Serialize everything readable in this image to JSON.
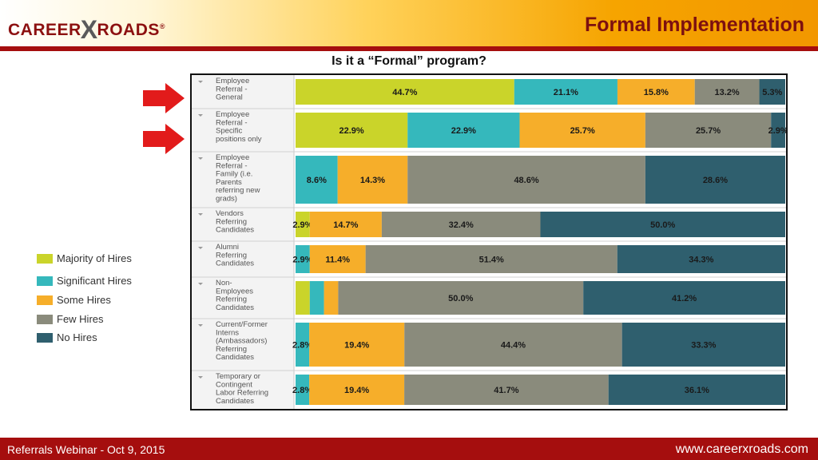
{
  "header": {
    "logo_left": "CAREER",
    "logo_x": "X",
    "logo_right": "ROADS",
    "logo_mark": "®",
    "title": "Formal Implementation"
  },
  "footer": {
    "left": "Referrals Webinar - Oct 9, 2015",
    "right": "www.careerxroads.com"
  },
  "colors": {
    "majority": "#cad42a",
    "significant": "#35b8bc",
    "some": "#f6ae2a",
    "few": "#8a8b7c",
    "none": "#2f5f6e",
    "arrow": "#e21b1b",
    "header_rule": "#a50e0e"
  },
  "icons": [
    "red-arrow-icon",
    "dropdown-caret-icon"
  ],
  "chart_data": {
    "type": "bar",
    "orientation": "horizontal",
    "stacked": true,
    "normalized": true,
    "title": "Is it a “Formal” program?",
    "legend_placement": "left",
    "categories": [
      [
        "Employee",
        "Referral -",
        "General"
      ],
      [
        "Employee",
        "Referral -",
        "Specific",
        "positions only"
      ],
      [
        "Employee",
        "Referral -",
        "Family (i.e.",
        "Parents",
        "referring new",
        "grads)"
      ],
      [
        "Vendors",
        "Referring",
        "Candidates"
      ],
      [
        "Alumni",
        "Referring",
        "Candidates"
      ],
      [
        "Non-",
        "Employees",
        "Referring",
        "Candidates"
      ],
      [
        "Current/Former",
        "Interns",
        "(Ambassadors)",
        "Referring",
        "Candidates"
      ],
      [
        "Temporary or",
        "Contingent",
        "Labor Referring",
        "Candidates"
      ]
    ],
    "series": [
      {
        "name": "Majority of Hires",
        "color_key": "majority",
        "values": [
          44.7,
          22.9,
          0,
          2.9,
          0,
          2.9,
          0,
          0
        ]
      },
      {
        "name": "Significant Hires",
        "color_key": "significant",
        "values": [
          21.1,
          22.9,
          8.6,
          0,
          2.9,
          2.9,
          2.8,
          2.8
        ]
      },
      {
        "name": "Some Hires",
        "color_key": "some",
        "values": [
          15.8,
          25.7,
          14.3,
          14.7,
          11.4,
          2.9,
          19.4,
          19.4
        ]
      },
      {
        "name": "Few Hires",
        "color_key": "few",
        "values": [
          13.2,
          25.7,
          48.6,
          32.4,
          51.4,
          50.0,
          44.4,
          41.7
        ]
      },
      {
        "name": "No Hires",
        "color_key": "none",
        "values": [
          5.3,
          2.9,
          28.6,
          50.0,
          34.3,
          41.2,
          33.3,
          36.1
        ]
      }
    ],
    "data_labels": [
      [
        "44.7%",
        "21.1%",
        "15.8%",
        "13.2%",
        "5.3%"
      ],
      [
        "22.9%",
        "22.9%",
        "25.7%",
        "25.7%",
        "2.9%"
      ],
      [
        "",
        "8.6%",
        "14.3%",
        "48.6%",
        "28.6%"
      ],
      [
        "2.9%",
        "",
        "14.7%",
        "32.4%",
        "50.0%"
      ],
      [
        "",
        "2.9%",
        "11.4%",
        "51.4%",
        "34.3%"
      ],
      [
        "",
        "",
        "",
        "50.0%",
        "41.2%"
      ],
      [
        "",
        "2.8%",
        "19.4%",
        "44.4%",
        "33.3%"
      ],
      [
        "",
        "2.8%",
        "19.4%",
        "41.7%",
        "36.1%"
      ]
    ],
    "highlighted_rows": [
      0,
      1
    ]
  }
}
